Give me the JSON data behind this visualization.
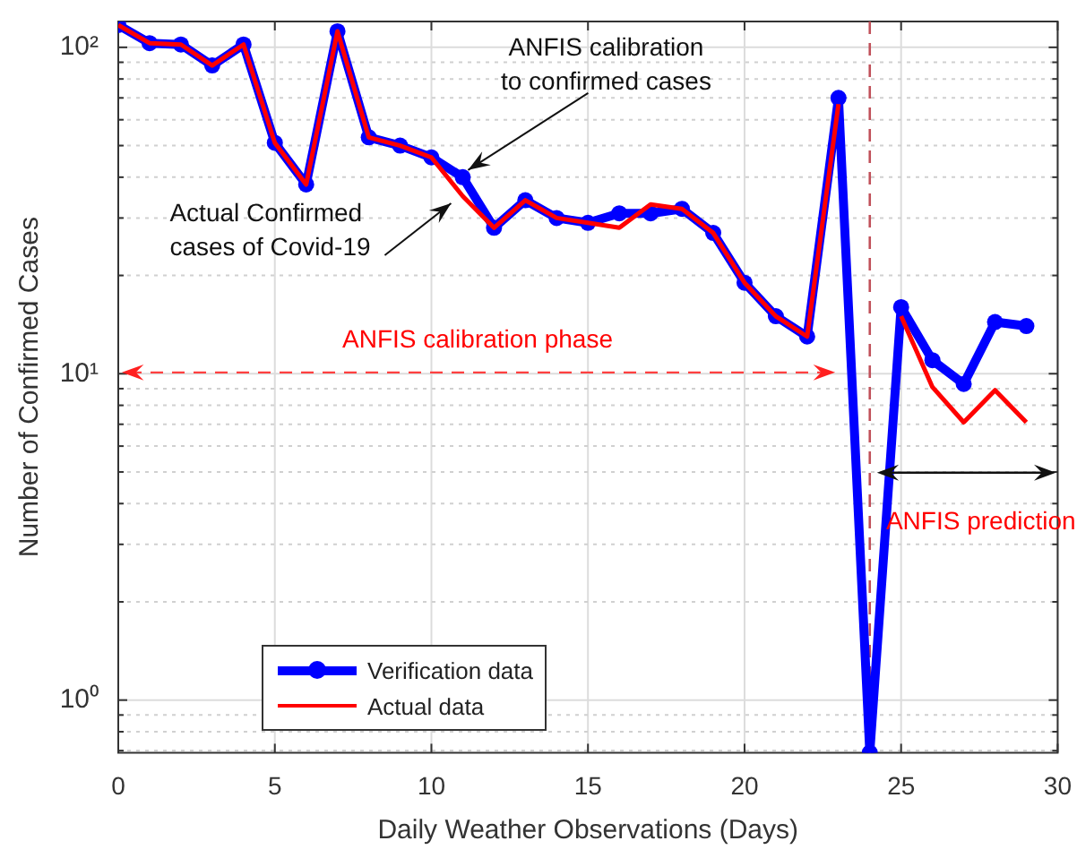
{
  "chart_data": {
    "type": "line",
    "xlabel": "Daily Weather Observations (Days)",
    "ylabel": "Number of Confirmed Cases",
    "x": [
      0,
      1,
      2,
      3,
      4,
      5,
      6,
      7,
      8,
      9,
      10,
      11,
      12,
      13,
      14,
      15,
      16,
      17,
      18,
      19,
      20,
      21,
      22,
      23,
      24,
      25,
      26,
      27,
      28,
      29
    ],
    "series": [
      {
        "name": "Verification data",
        "color": "#0000ff",
        "marker": "circle",
        "values": [
          117,
          103,
          102,
          88,
          102,
          51,
          38,
          112,
          53,
          50,
          46,
          40,
          28,
          34,
          30,
          29,
          31,
          31,
          32,
          27,
          19,
          15,
          13,
          70,
          0.69,
          16,
          11,
          9.3,
          14.4,
          14
        ]
      },
      {
        "name": "Actual data",
        "color": "#ff0000",
        "marker": "none",
        "values": [
          117,
          103,
          102,
          88,
          102,
          51,
          38,
          112,
          53,
          50,
          46,
          35,
          28,
          34,
          30,
          29,
          28,
          33,
          32,
          27,
          19,
          15,
          13,
          67,
          null,
          15,
          9.1,
          7.1,
          8.9,
          7.1
        ]
      }
    ],
    "log": "y",
    "xlim": [
      0,
      30
    ],
    "xticks": [
      0,
      5,
      10,
      15,
      20,
      25,
      30
    ],
    "ylim": [
      0.69,
      120
    ],
    "yticks": [
      {
        "value": 0.7,
        "label": null
      },
      {
        "value": 0.8,
        "label": null
      },
      {
        "value": 0.9,
        "label": null
      },
      {
        "value": 1,
        "label": "10⁰"
      },
      {
        "value": 2,
        "label": null
      },
      {
        "value": 3,
        "label": null
      },
      {
        "value": 4,
        "label": null
      },
      {
        "value": 5,
        "label": null
      },
      {
        "value": 6,
        "label": null
      },
      {
        "value": 7,
        "label": null
      },
      {
        "value": 8,
        "label": null
      },
      {
        "value": 9,
        "label": null
      },
      {
        "value": 10,
        "label": "10¹"
      },
      {
        "value": 20,
        "label": null
      },
      {
        "value": 30,
        "label": null
      },
      {
        "value": 40,
        "label": null
      },
      {
        "value": 50,
        "label": null
      },
      {
        "value": 60,
        "label": null
      },
      {
        "value": 70,
        "label": null
      },
      {
        "value": 80,
        "label": null
      },
      {
        "value": 90,
        "label": null
      },
      {
        "value": 100,
        "label": "10²"
      }
    ],
    "grid": true,
    "legend": "bottom left",
    "ref_lines": [
      {
        "axis": "x",
        "value": 24,
        "color": "#c0505a",
        "line_style": "dashed"
      }
    ],
    "annotations": [
      {
        "text": "ANFIS calibration\nto confirmed cases",
        "x": 11,
        "y": 40
      },
      {
        "text": "Actual Confirmed\ncases of Covid-19",
        "x": 10.8,
        "y": 35
      },
      "ANFIS calibration phase",
      "ANFIS prediction"
    ]
  }
}
